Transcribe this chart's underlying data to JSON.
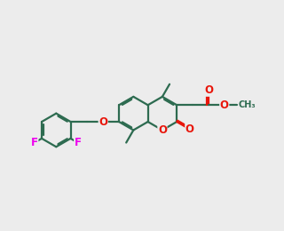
{
  "bg": "#ececec",
  "bc": "#2d6b50",
  "oc": "#e8150a",
  "fc": "#ee00ee",
  "lw": 1.6,
  "dbo": 0.055,
  "fs": 8.5
}
